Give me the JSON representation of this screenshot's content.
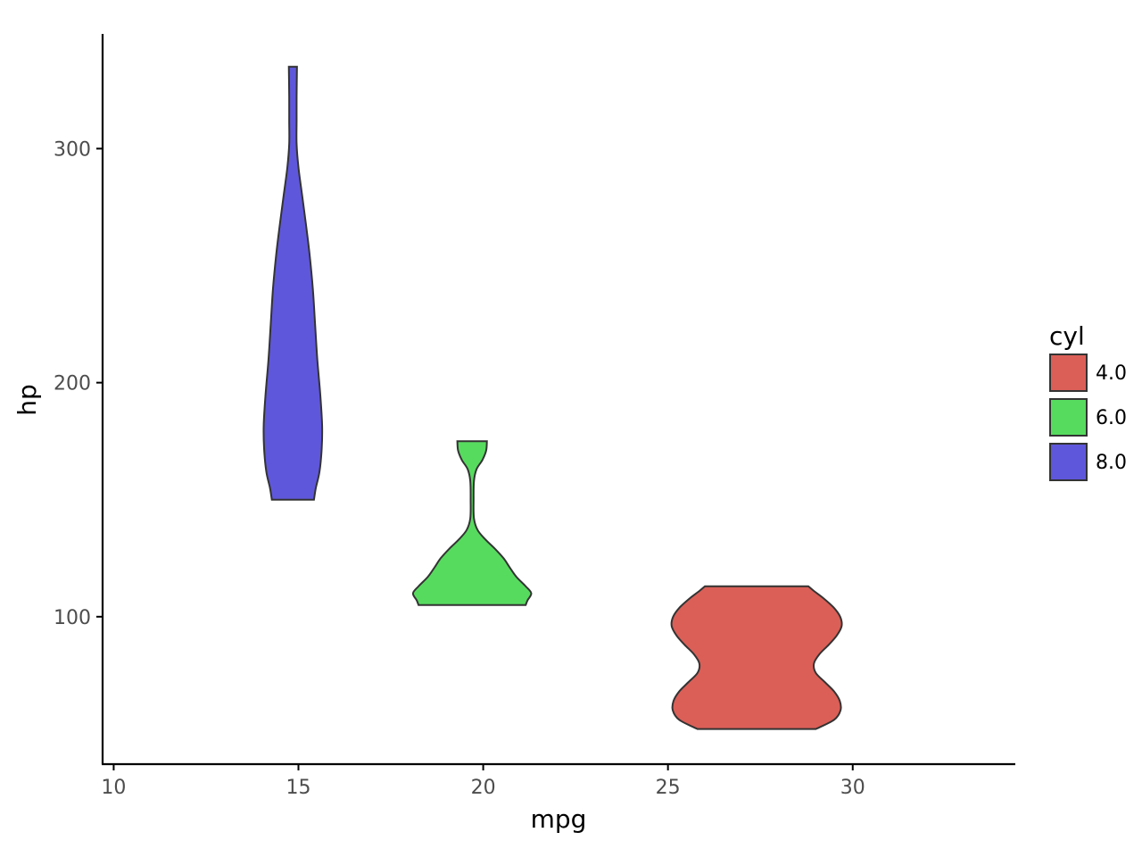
{
  "chart_data": {
    "type": "violin",
    "xlabel": "mpg",
    "ylabel": "hp",
    "xlim": [
      9.7,
      34.4
    ],
    "ylim": [
      37,
      349
    ],
    "x_ticks": [
      10,
      15,
      20,
      25,
      30
    ],
    "y_ticks": [
      100,
      200,
      300
    ],
    "grid": false,
    "legend": {
      "title": "cyl",
      "position": "right",
      "entries": [
        {
          "label": "4.0",
          "color": "#db5f57"
        },
        {
          "label": "6.0",
          "color": "#57db5f"
        },
        {
          "label": "8.0",
          "color": "#5f57db"
        }
      ]
    },
    "series": [
      {
        "group": "4.0",
        "color": "#db5f57",
        "center_x": 27.4,
        "y_range": [
          52,
          113
        ],
        "profile": [
          {
            "y": 52,
            "half_width": 1.6
          },
          {
            "y": 56,
            "half_width": 2.1
          },
          {
            "y": 60,
            "half_width": 2.27
          },
          {
            "y": 64,
            "half_width": 2.25
          },
          {
            "y": 68,
            "half_width": 2.1
          },
          {
            "y": 72,
            "half_width": 1.85
          },
          {
            "y": 76,
            "half_width": 1.6
          },
          {
            "y": 80,
            "half_width": 1.55
          },
          {
            "y": 84,
            "half_width": 1.7
          },
          {
            "y": 88,
            "half_width": 1.95
          },
          {
            "y": 92,
            "half_width": 2.17
          },
          {
            "y": 96,
            "half_width": 2.3
          },
          {
            "y": 100,
            "half_width": 2.26
          },
          {
            "y": 104,
            "half_width": 2.08
          },
          {
            "y": 108,
            "half_width": 1.8
          },
          {
            "y": 111,
            "half_width": 1.55
          },
          {
            "y": 113,
            "half_width": 1.4
          }
        ]
      },
      {
        "group": "6.0",
        "color": "#57db5f",
        "center_x": 19.7,
        "y_range": [
          105,
          175
        ],
        "profile": [
          {
            "y": 105,
            "half_width": 1.45
          },
          {
            "y": 107,
            "half_width": 1.5
          },
          {
            "y": 110,
            "half_width": 1.6
          },
          {
            "y": 113,
            "half_width": 1.45
          },
          {
            "y": 117,
            "half_width": 1.2
          },
          {
            "y": 121,
            "half_width": 1.02
          },
          {
            "y": 125,
            "half_width": 0.85
          },
          {
            "y": 129,
            "half_width": 0.62
          },
          {
            "y": 133,
            "half_width": 0.36
          },
          {
            "y": 137,
            "half_width": 0.15
          },
          {
            "y": 142,
            "half_width": 0.05
          },
          {
            "y": 150,
            "half_width": 0.04
          },
          {
            "y": 158,
            "half_width": 0.05
          },
          {
            "y": 163,
            "half_width": 0.12
          },
          {
            "y": 167,
            "half_width": 0.28
          },
          {
            "y": 171,
            "half_width": 0.38
          },
          {
            "y": 175,
            "half_width": 0.4
          }
        ]
      },
      {
        "group": "8.0",
        "color": "#5f57db",
        "center_x": 14.85,
        "y_range": [
          150,
          335
        ],
        "profile": [
          {
            "y": 150,
            "half_width": 0.57
          },
          {
            "y": 155,
            "half_width": 0.62
          },
          {
            "y": 162,
            "half_width": 0.72
          },
          {
            "y": 172,
            "half_width": 0.78
          },
          {
            "y": 182,
            "half_width": 0.79
          },
          {
            "y": 195,
            "half_width": 0.74
          },
          {
            "y": 210,
            "half_width": 0.66
          },
          {
            "y": 225,
            "half_width": 0.6
          },
          {
            "y": 240,
            "half_width": 0.54
          },
          {
            "y": 255,
            "half_width": 0.45
          },
          {
            "y": 268,
            "half_width": 0.35
          },
          {
            "y": 280,
            "half_width": 0.25
          },
          {
            "y": 292,
            "half_width": 0.15
          },
          {
            "y": 302,
            "half_width": 0.1
          },
          {
            "y": 312,
            "half_width": 0.1
          },
          {
            "y": 322,
            "half_width": 0.1
          },
          {
            "y": 335,
            "half_width": 0.11
          }
        ]
      }
    ]
  }
}
